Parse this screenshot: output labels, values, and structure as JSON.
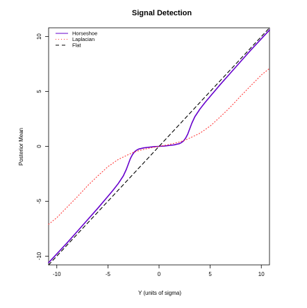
{
  "chart_data": {
    "type": "line",
    "title": "Signal Detection",
    "xlabel": "Y (units of sigma)",
    "ylabel": "Posterior Mean",
    "xlim": [
      -10.8,
      10.8
    ],
    "ylim": [
      -10.8,
      10.8
    ],
    "x_ticks": [
      -10,
      -5,
      0,
      5,
      10
    ],
    "y_ticks": [
      -10,
      -5,
      0,
      5,
      10
    ],
    "grid": false,
    "legend": "top-left",
    "series": [
      {
        "name": "Horseshoe",
        "color": "#6600cc",
        "style": "solid",
        "x": [
          -10.8,
          -10,
          -9,
          -8,
          -7,
          -6,
          -5,
          -4.5,
          -4,
          -3.5,
          -3.2,
          -3,
          -2.8,
          -2.6,
          -2.4,
          -2.2,
          -2,
          -1.5,
          -1,
          -0.5,
          0,
          0.5,
          1,
          1.5,
          2,
          2.2,
          2.4,
          2.6,
          2.8,
          3,
          3.2,
          3.5,
          4,
          4.5,
          5,
          6,
          7,
          8,
          9,
          10,
          10.8
        ],
        "y": [
          -10.6,
          -9.8,
          -8.8,
          -7.75,
          -6.7,
          -5.65,
          -4.55,
          -4.0,
          -3.4,
          -2.7,
          -2.1,
          -1.6,
          -1.1,
          -0.75,
          -0.5,
          -0.35,
          -0.25,
          -0.14,
          -0.08,
          -0.03,
          0,
          0.03,
          0.08,
          0.14,
          0.25,
          0.35,
          0.5,
          0.75,
          1.1,
          1.6,
          2.1,
          2.7,
          3.4,
          4.0,
          4.55,
          5.65,
          6.7,
          7.75,
          8.8,
          9.8,
          10.6
        ]
      },
      {
        "name": "Laplacian",
        "color": "#ff3333",
        "style": "dotted",
        "x": [
          -10.8,
          -10,
          -9,
          -8,
          -7,
          -6,
          -5,
          -4,
          -3,
          -2.5,
          -2,
          -1.5,
          -1,
          -0.5,
          0,
          0.5,
          1,
          1.5,
          2,
          2.5,
          3,
          4,
          5,
          6,
          7,
          8,
          9,
          10,
          10.8
        ],
        "y": [
          -7.1,
          -6.5,
          -5.55,
          -4.6,
          -3.6,
          -2.7,
          -1.85,
          -1.2,
          -0.75,
          -0.55,
          -0.4,
          -0.28,
          -0.17,
          -0.08,
          0,
          0.08,
          0.17,
          0.28,
          0.4,
          0.55,
          0.75,
          1.2,
          1.85,
          2.7,
          3.6,
          4.6,
          5.55,
          6.5,
          7.1
        ]
      },
      {
        "name": "Flat",
        "color": "#000000",
        "style": "dashed",
        "x": [
          -10.8,
          10.8
        ],
        "y": [
          -10.8,
          10.8
        ]
      }
    ]
  }
}
